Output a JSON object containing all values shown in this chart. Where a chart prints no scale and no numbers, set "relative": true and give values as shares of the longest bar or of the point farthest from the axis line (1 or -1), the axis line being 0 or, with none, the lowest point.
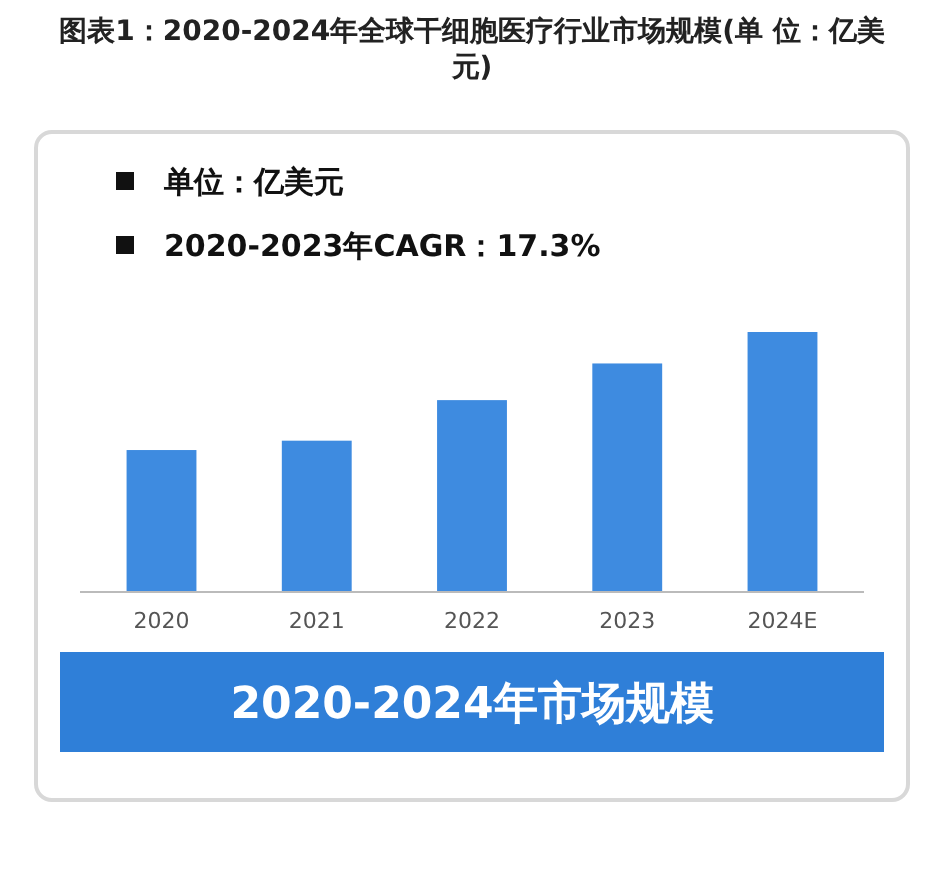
{
  "chart_data": {
    "type": "bar",
    "title": "图表1：2020-2024年全球干细胞医疗行业市场规模(单 位：亿美元)",
    "subtitle": "2020-2024年市场规模",
    "categories": [
      "2020",
      "2021",
      "2022",
      "2023",
      "2024E"
    ],
    "values": [
      0.546,
      0.582,
      0.738,
      0.879,
      1
    ],
    "color": "#3e8be0",
    "relative": true,
    "annotations": [
      "单位：亿美元",
      "2020-2023年CAGR：17.3%"
    ]
  }
}
